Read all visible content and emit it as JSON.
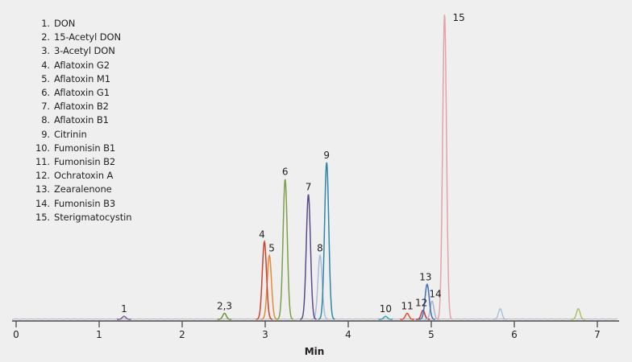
{
  "chart_data": {
    "type": "line",
    "title": "",
    "subtitle": "",
    "xlabel": "Min",
    "ylabel": "",
    "xlim": [
      0,
      7.25
    ],
    "x_ticks": [
      0,
      1,
      2,
      3,
      4,
      5,
      6,
      7
    ],
    "grid": false,
    "legend_position": "top-left",
    "legend": [
      {
        "num": "1.",
        "name": "DON"
      },
      {
        "num": "2.",
        "name": "15-Acetyl DON"
      },
      {
        "num": "3.",
        "name": "3-Acetyl DON"
      },
      {
        "num": "4.",
        "name": "Aflatoxin G2"
      },
      {
        "num": "5.",
        "name": "Aflatoxin M1"
      },
      {
        "num": "6.",
        "name": "Aflatoxin G1"
      },
      {
        "num": "7.",
        "name": "Aflatoxin B2"
      },
      {
        "num": "8.",
        "name": "Aflatoxin B1"
      },
      {
        "num": "9.",
        "name": "Citrinin"
      },
      {
        "num": "10.",
        "name": "Fumonisin B1"
      },
      {
        "num": "11.",
        "name": "Fumonisin B2"
      },
      {
        "num": "12.",
        "name": "Ochratoxin A"
      },
      {
        "num": "13.",
        "name": "Zearalenone"
      },
      {
        "num": "14.",
        "name": "Fumonisin B3"
      },
      {
        "num": "15.",
        "name": "Sterigmatocystin"
      }
    ],
    "series": [
      {
        "label": "1",
        "compound": "DON",
        "rt_min": 1.3,
        "rel_height": 0.01,
        "color": "#7b5ea7"
      },
      {
        "label": "2,3",
        "compound": "15-Acetyl DON / 3-Acetyl DON",
        "rt_min": 2.51,
        "rel_height": 0.02,
        "color": "#6a9a3a"
      },
      {
        "label": "4",
        "compound": "Aflatoxin G2",
        "rt_min": 2.99,
        "rel_height": 0.255,
        "color": "#c8442f"
      },
      {
        "label": "5",
        "compound": "Aflatoxin M1",
        "rt_min": 3.05,
        "rel_height": 0.21,
        "color": "#e8893a"
      },
      {
        "label": "6",
        "compound": "Aflatoxin G1",
        "rt_min": 3.24,
        "rel_height": 0.46,
        "color": "#7ba04a"
      },
      {
        "label": "7",
        "compound": "Aflatoxin B2",
        "rt_min": 3.52,
        "rel_height": 0.41,
        "color": "#5c4a8c"
      },
      {
        "label": "8",
        "compound": "Aflatoxin B1",
        "rt_min": 3.66,
        "rel_height": 0.21,
        "color": "#a9bcd8"
      },
      {
        "label": "9",
        "compound": "Citrinin",
        "rt_min": 3.74,
        "rel_height": 0.515,
        "color": "#2f86a6"
      },
      {
        "label": "10",
        "compound": "Fumonisin B1",
        "rt_min": 4.45,
        "rel_height": 0.01,
        "color": "#3a9fb5"
      },
      {
        "label": "11",
        "compound": "Fumonisin B2",
        "rt_min": 4.71,
        "rel_height": 0.02,
        "color": "#d8542e"
      },
      {
        "label": "12",
        "compound": "Ochratoxin A",
        "rt_min": 4.9,
        "rel_height": 0.03,
        "color": "#b93a3a"
      },
      {
        "label": "13",
        "compound": "Zearalenone",
        "rt_min": 4.95,
        "rel_height": 0.115,
        "color": "#3f6fb5"
      },
      {
        "label": "14",
        "compound": "Fumonisin B3",
        "rt_min": 5.01,
        "rel_height": 0.06,
        "color": "#a9b4cc"
      },
      {
        "label": "15",
        "compound": "Sterigmatocystin",
        "rt_min": 5.16,
        "rel_height": 1.0,
        "color": "#e4a3a3"
      }
    ],
    "unlabeled_peaks": [
      {
        "rt_min": 5.83,
        "rel_height": 0.035,
        "color": "#a9bcd8"
      },
      {
        "rt_min": 6.77,
        "rel_height": 0.035,
        "color": "#a8c060"
      }
    ]
  }
}
